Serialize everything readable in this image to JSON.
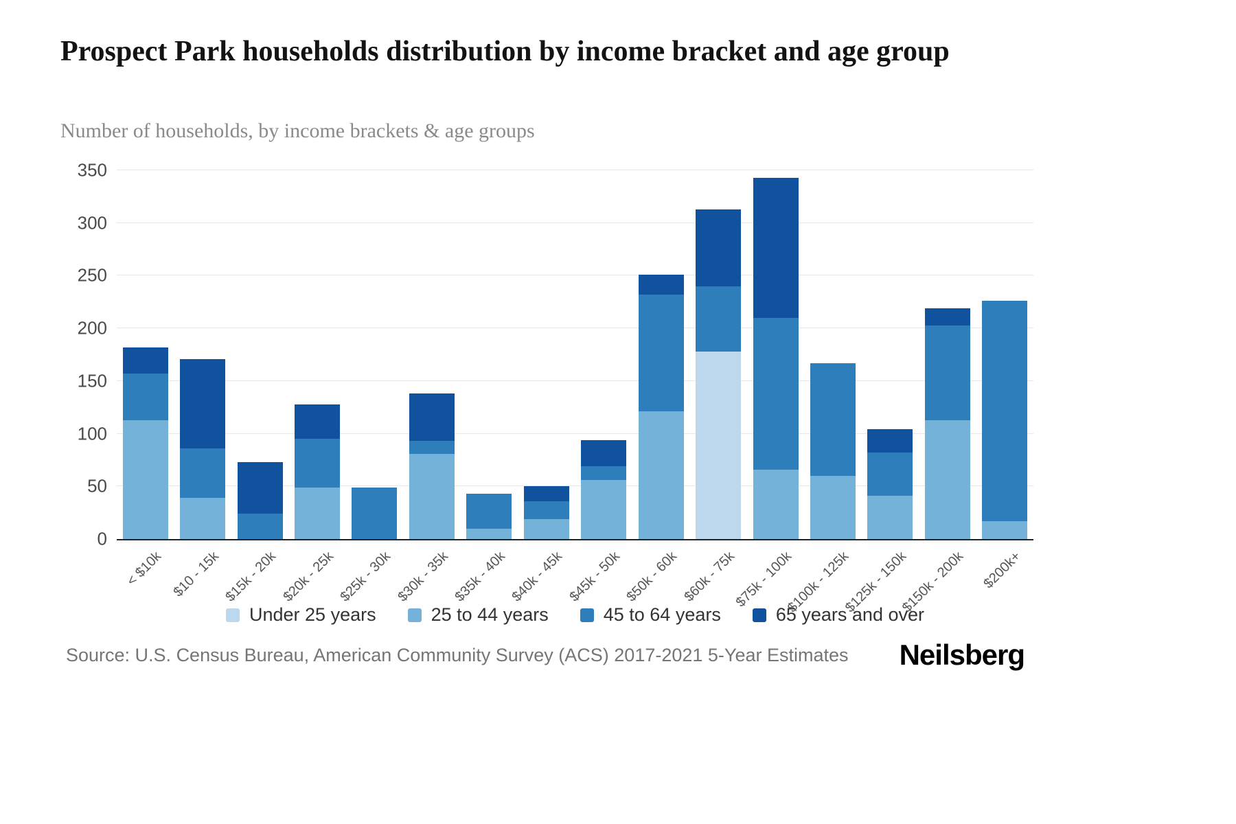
{
  "chart_data": {
    "type": "bar",
    "stacked": true,
    "title": "Prospect Park households distribution by income bracket and age group",
    "subtitle": "Number of households, by income brackets & age groups",
    "categories": [
      "< $10k",
      "$10 - 15k",
      "$15k - 20k",
      "$20k - 25k",
      "$25k - 30k",
      "$30k - 35k",
      "$35k - 40k",
      "$40k - 45k",
      "$45k - 50k",
      "$50k - 60k",
      "$60k - 75k",
      "$75k - 100k",
      "$100k - 125k",
      "$125k - 150k",
      "$150k - 200k",
      "$200k+"
    ],
    "series": [
      {
        "name": "Under 25 years",
        "color": "#bdd8ec",
        "values": [
          0,
          0,
          0,
          0,
          0,
          0,
          0,
          0,
          0,
          0,
          178,
          0,
          0,
          0,
          0,
          0
        ]
      },
      {
        "name": "25 to 44 years",
        "color": "#74b2d9",
        "values": [
          113,
          39,
          0,
          49,
          0,
          81,
          10,
          19,
          56,
          121,
          0,
          66,
          60,
          41,
          113,
          17
        ]
      },
      {
        "name": "45 to 64 years",
        "color": "#2e7ebc",
        "values": [
          44,
          47,
          24,
          46,
          49,
          12,
          33,
          17,
          13,
          111,
          62,
          144,
          107,
          41,
          90,
          209
        ]
      },
      {
        "name": "65 years and over",
        "color": "#11529e",
        "values": [
          25,
          85,
          49,
          33,
          0,
          45,
          0,
          14,
          25,
          19,
          73,
          133,
          0,
          22,
          16,
          0
        ]
      }
    ],
    "xlabel": "",
    "ylabel": "",
    "ylim": [
      0,
      350
    ],
    "yticks": [
      0,
      50,
      100,
      150,
      200,
      250,
      300,
      350
    ],
    "grid": true,
    "legend_position": "bottom"
  },
  "footer": {
    "source": "Source: U.S. Census Bureau, American Community Survey (ACS) 2017-2021 5-Year Estimates",
    "brand": "Neilsberg"
  }
}
